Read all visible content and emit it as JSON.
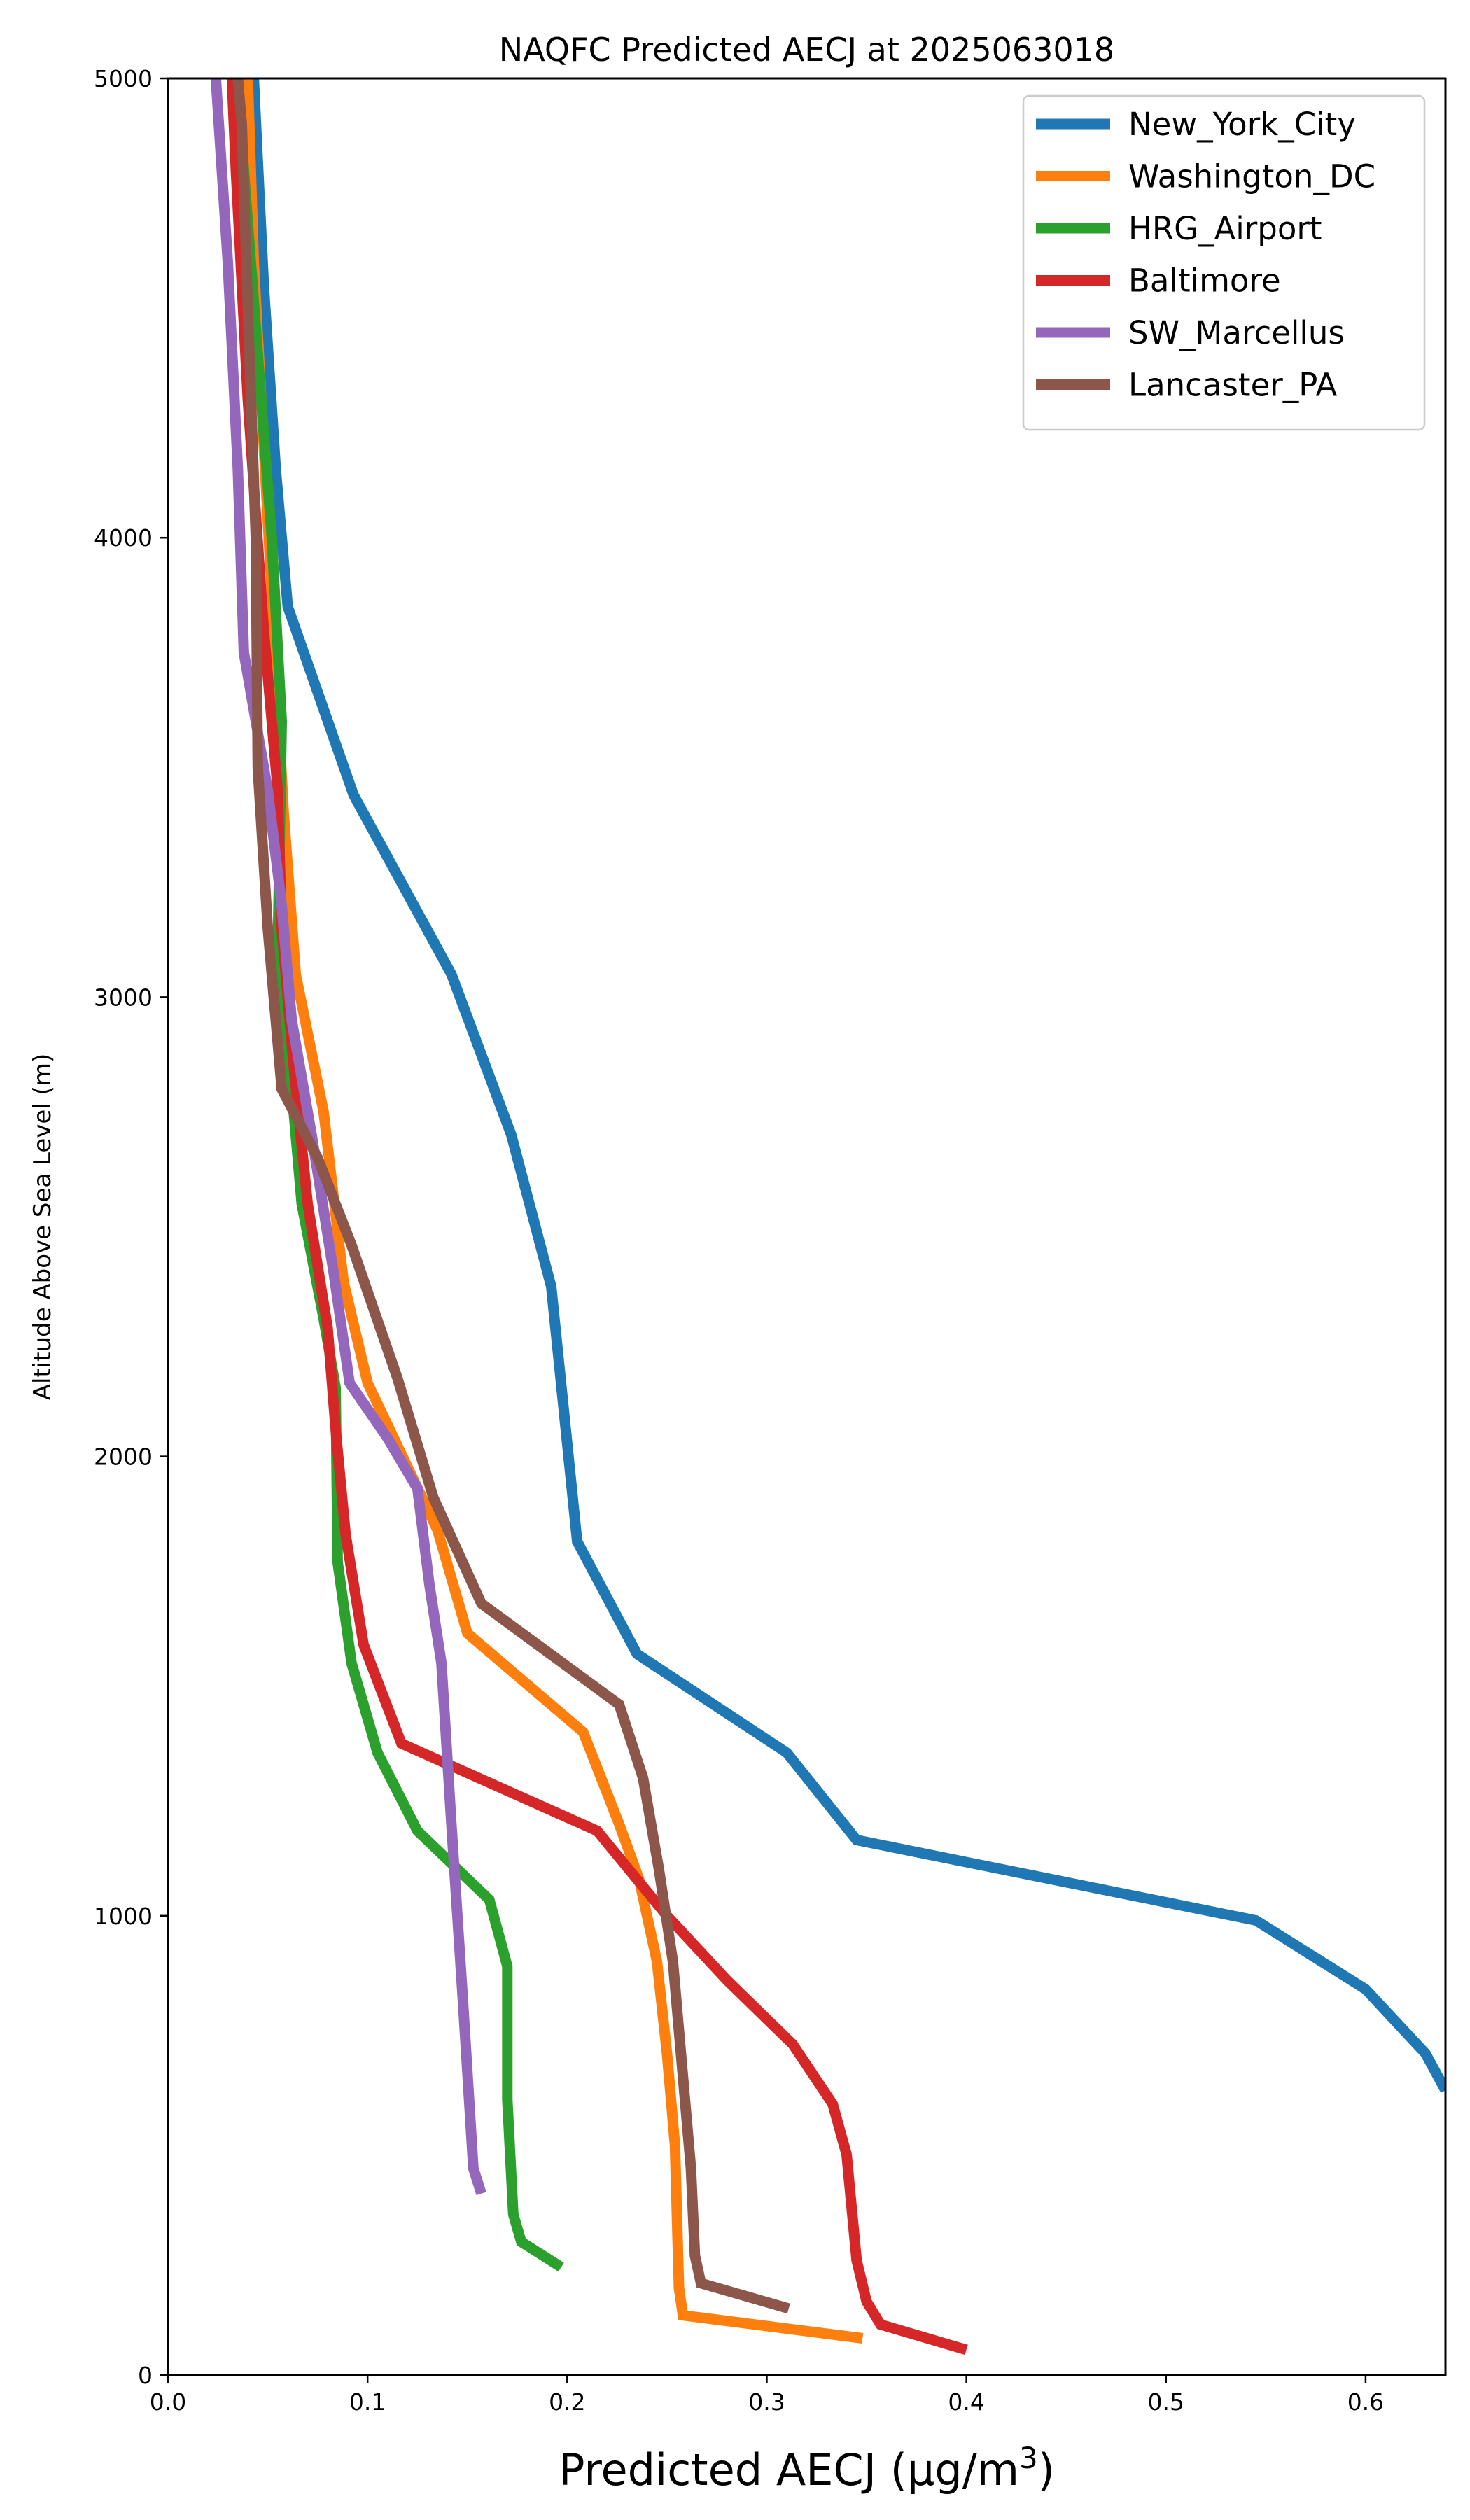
{
  "chart_data": {
    "type": "line",
    "title": "NAQFC Predicted AECJ at 2025063018",
    "xlabel_prefix": "Predicted AECJ (",
    "xlabel_unit_base": "μg/m",
    "xlabel_unit_exp": "3",
    "xlabel_suffix": ")",
    "ylabel": "Altitude Above Sea Level (m)",
    "xlim": [
      0,
      0.64
    ],
    "ylim": [
      0,
      5000
    ],
    "xticks": [
      0.0,
      0.1,
      0.2,
      0.3,
      0.4,
      0.5,
      0.6
    ],
    "xtick_labels": [
      "0.0",
      "0.1",
      "0.2",
      "0.3",
      "0.4",
      "0.5",
      "0.6"
    ],
    "yticks": [
      0,
      1000,
      2000,
      3000,
      4000,
      5000
    ],
    "ytick_labels": [
      "0",
      "1000",
      "2000",
      "3000",
      "4000",
      "5000"
    ],
    "grid": false,
    "legend_position": "top-right",
    "series": [
      {
        "name": "New_York_City",
        "color": "#1f77b4",
        "points": [
          [
            0.64,
            620
          ],
          [
            0.63,
            700
          ],
          [
            0.6,
            840
          ],
          [
            0.545,
            990
          ],
          [
            0.345,
            1165
          ],
          [
            0.31,
            1355
          ],
          [
            0.235,
            1570
          ],
          [
            0.205,
            1815
          ],
          [
            0.192,
            2370
          ],
          [
            0.172,
            2700
          ],
          [
            0.142,
            3050
          ],
          [
            0.093,
            3440
          ],
          [
            0.06,
            3850
          ],
          [
            0.054,
            4150
          ],
          [
            0.048,
            4550
          ],
          [
            0.043,
            5000
          ]
        ]
      },
      {
        "name": "Washington_DC",
        "color": "#ff7f0e",
        "points": [
          [
            0.348,
            80
          ],
          [
            0.258,
            130
          ],
          [
            0.256,
            190
          ],
          [
            0.254,
            500
          ],
          [
            0.25,
            700
          ],
          [
            0.245,
            900
          ],
          [
            0.236,
            1080
          ],
          [
            0.226,
            1200
          ],
          [
            0.208,
            1400
          ],
          [
            0.15,
            1615
          ],
          [
            0.135,
            1840
          ],
          [
            0.1,
            2160
          ],
          [
            0.088,
            2380
          ],
          [
            0.078,
            2750
          ],
          [
            0.064,
            3050
          ],
          [
            0.058,
            3400
          ],
          [
            0.053,
            3800
          ],
          [
            0.048,
            4200
          ],
          [
            0.043,
            4600
          ],
          [
            0.04,
            5000
          ]
        ]
      },
      {
        "name": "HRG_Airport",
        "color": "#2ca02c",
        "points": [
          [
            0.197,
            235
          ],
          [
            0.177,
            290
          ],
          [
            0.173,
            350
          ],
          [
            0.17,
            600
          ],
          [
            0.17,
            890
          ],
          [
            0.161,
            1035
          ],
          [
            0.125,
            1185
          ],
          [
            0.105,
            1355
          ],
          [
            0.092,
            1550
          ],
          [
            0.085,
            1770
          ],
          [
            0.084,
            2150
          ],
          [
            0.078,
            2300
          ],
          [
            0.067,
            2550
          ],
          [
            0.062,
            2800
          ],
          [
            0.055,
            3100
          ],
          [
            0.057,
            3600
          ],
          [
            0.052,
            4000
          ],
          [
            0.045,
            4400
          ],
          [
            0.038,
            4800
          ],
          [
            0.035,
            5000
          ]
        ]
      },
      {
        "name": "Baltimore",
        "color": "#d62728",
        "points": [
          [
            0.4,
            55
          ],
          [
            0.357,
            110
          ],
          [
            0.35,
            160
          ],
          [
            0.345,
            250
          ],
          [
            0.34,
            480
          ],
          [
            0.333,
            590
          ],
          [
            0.313,
            720
          ],
          [
            0.28,
            860
          ],
          [
            0.25,
            1000
          ],
          [
            0.215,
            1185
          ],
          [
            0.117,
            1375
          ],
          [
            0.098,
            1590
          ],
          [
            0.089,
            1830
          ],
          [
            0.084,
            2060
          ],
          [
            0.08,
            2280
          ],
          [
            0.07,
            2550
          ],
          [
            0.063,
            2850
          ],
          [
            0.057,
            3150
          ],
          [
            0.055,
            3450
          ],
          [
            0.048,
            3800
          ],
          [
            0.04,
            4300
          ],
          [
            0.034,
            4800
          ],
          [
            0.032,
            5000
          ]
        ]
      },
      {
        "name": "SW_Marcellus",
        "color": "#9467bd",
        "points": [
          [
            0.157,
            395
          ],
          [
            0.153,
            450
          ],
          [
            0.148,
            800
          ],
          [
            0.142,
            1200
          ],
          [
            0.137,
            1550
          ],
          [
            0.131,
            1720
          ],
          [
            0.125,
            1930
          ],
          [
            0.11,
            2040
          ],
          [
            0.091,
            2160
          ],
          [
            0.083,
            2400
          ],
          [
            0.072,
            2700
          ],
          [
            0.062,
            2950
          ],
          [
            0.057,
            3200
          ],
          [
            0.05,
            3450
          ],
          [
            0.038,
            3750
          ],
          [
            0.035,
            4150
          ],
          [
            0.03,
            4600
          ],
          [
            0.024,
            5000
          ]
        ]
      },
      {
        "name": "Lancaster_PA",
        "color": "#8c564b",
        "points": [
          [
            0.311,
            145
          ],
          [
            0.267,
            200
          ],
          [
            0.264,
            260
          ],
          [
            0.262,
            450
          ],
          [
            0.258,
            650
          ],
          [
            0.253,
            900
          ],
          [
            0.246,
            1100
          ],
          [
            0.238,
            1300
          ],
          [
            0.226,
            1460
          ],
          [
            0.157,
            1680
          ],
          [
            0.133,
            1910
          ],
          [
            0.115,
            2170
          ],
          [
            0.092,
            2460
          ],
          [
            0.075,
            2650
          ],
          [
            0.057,
            2800
          ],
          [
            0.05,
            3150
          ],
          [
            0.045,
            3500
          ],
          [
            0.044,
            4000
          ],
          [
            0.04,
            4500
          ],
          [
            0.037,
            4900
          ],
          [
            0.035,
            5000
          ]
        ]
      }
    ]
  }
}
